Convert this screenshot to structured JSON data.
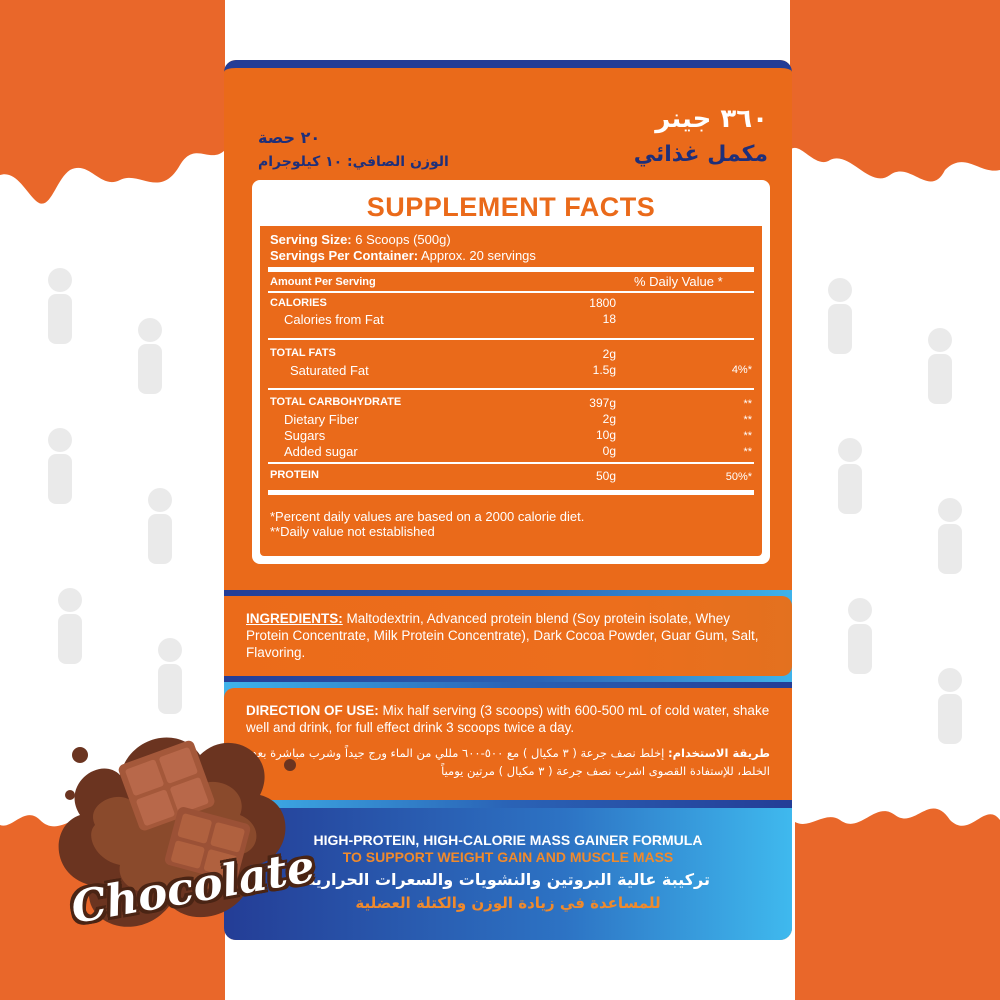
{
  "colors": {
    "orange": "#ea6a1a",
    "navy": "#243d96",
    "sky": "#3fb3ea",
    "white": "#ffffff"
  },
  "header": {
    "title_ar": "٣٦٠ جينر",
    "subtitle_ar": "مكمل غذائي",
    "servings_ar": "٢٠ حصة",
    "net_weight_ar": "الوزن الصافي: ١٠ كيلوجرام"
  },
  "facts": {
    "title": "SUPPLEMENT FACTS",
    "serving_size_label": "Serving Size:",
    "serving_size_value": "6 Scoops (500g)",
    "servings_label": "Servings Per Container:",
    "servings_value": "Approx. 20 servings",
    "amount_header": "Amount Per Serving",
    "dv_header": "% Daily Value *",
    "rows": [
      {
        "label": "CALORIES",
        "amount": "1800",
        "dv": ""
      },
      {
        "label": "Calories from Fat",
        "amount": "18",
        "dv": ""
      },
      {
        "label": "TOTAL FATS",
        "amount": "2g",
        "dv": ""
      },
      {
        "label": "Saturated Fat",
        "amount": "1.5g",
        "dv": "4%*"
      },
      {
        "label": "TOTAL CARBOHYDRATE",
        "amount": "397g",
        "dv": "**"
      },
      {
        "label": "Dietary Fiber",
        "amount": "2g",
        "dv": "**"
      },
      {
        "label": "Sugars",
        "amount": "10g",
        "dv": "**"
      },
      {
        "label": "Added sugar",
        "amount": "0g",
        "dv": "**"
      },
      {
        "label": "PROTEIN",
        "amount": "50g",
        "dv": "50%*"
      }
    ],
    "footnote1": "*Percent daily values are based on a 2000 calorie diet.",
    "footnote2": "**Daily value not established"
  },
  "ingredients": {
    "label": "INGREDIENTS:",
    "text": " Maltodextrin, Advanced protein blend (Soy protein isolate, Whey Protein Concentrate, Milk Protein Concentrate),  Dark Cocoa Powder, Guar Gum, Salt, Flavoring."
  },
  "direction": {
    "label": "DIRECTION OF USE:",
    "text": " Mix half serving (3 scoops) with 600-500 mL of cold water, shake well and drink, for full effect drink 3 scoops twice a day.",
    "label_ar": "طريقة الاستخدام:",
    "text_ar": " إخلط نصف جرعة ( ٣ مكيال ) مع ٥٠٠-٦٠٠ مللي من الماء ورج جيداً وشرب مباشرة بعد الخلط، للإستفادة القصوى اشرب نصف جرعة ( ٣ مكيال ) مرتين يومياً"
  },
  "claim": {
    "en_line1": "HIGH-PROTEIN, HIGH-CALORIE MASS GAINER FORMULA",
    "en_line2": "TO SUPPORT WEIGHT GAIN AND MUSCLE MASS",
    "ar_line1": "تركيبة عالية البروتين والنشويات والسعرات الحرارية",
    "ar_line2": "للمساعدة في زيادة الوزن والكتلة العضلية"
  },
  "flavor": {
    "name": "Chocolate"
  }
}
